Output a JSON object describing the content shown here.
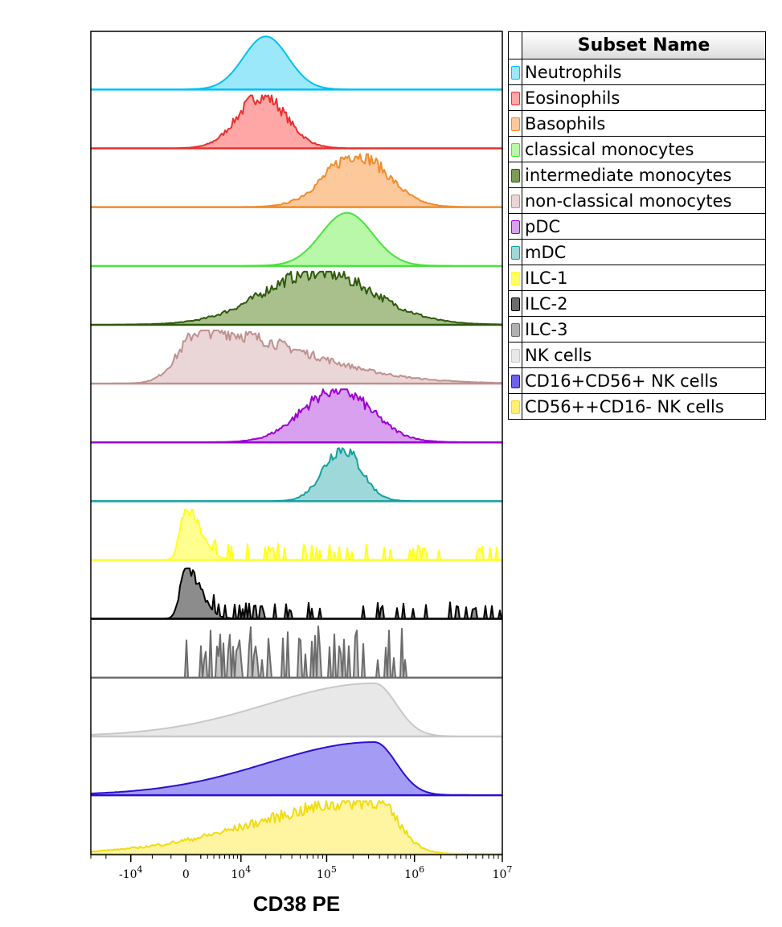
{
  "chart_data": {
    "type": "area",
    "title": "",
    "xlabel": "CD38 PE",
    "ylabel": "",
    "x_scale": "biexponential",
    "xlim": [
      -30000,
      10000000
    ],
    "x_ticks": [
      {
        "value": -10000,
        "base": "-10",
        "exp": "4"
      },
      {
        "value": 0,
        "base": "0",
        "exp": ""
      },
      {
        "value": 10000,
        "base": "10",
        "exp": "4"
      },
      {
        "value": 100000,
        "base": "10",
        "exp": "5"
      },
      {
        "value": 1000000,
        "base": "10",
        "exp": "6"
      },
      {
        "value": 10000000,
        "base": "10",
        "exp": "7"
      }
    ],
    "legend_header": "Subset Name",
    "legend_placement": "right",
    "series": [
      {
        "name": "Neutrophils",
        "color": "#00c0f0",
        "fill": "#9be8fb",
        "peak": 20000,
        "width": 0.65,
        "style": "smooth"
      },
      {
        "name": "Eosinophils",
        "color": "#e83030",
        "fill": "#ffa6a6",
        "peak": 18000,
        "width": 0.7,
        "style": "jagged"
      },
      {
        "name": "Basophils",
        "color": "#f08c2a",
        "fill": "#fdc89a",
        "peak": 220000,
        "width": 0.9,
        "style": "jagged"
      },
      {
        "name": "classical monocytes",
        "color": "#4ce040",
        "fill": "#b8f8a8",
        "peak": 170000,
        "width": 0.75,
        "style": "smooth"
      },
      {
        "name": "intermediate monocytes",
        "color": "#2f5a0c",
        "fill": "#a9c08c",
        "peak": 80000,
        "width": 1.6,
        "style": "jagged"
      },
      {
        "name": "non-classical monocytes",
        "color": "#c09090",
        "fill": "#ead6d6",
        "peak": 2000,
        "width": 1.6,
        "style": "skew"
      },
      {
        "name": "pDC",
        "color": "#9a00d0",
        "fill": "#d9a0f0",
        "peak": 130000,
        "width": 1.0,
        "style": "jagged"
      },
      {
        "name": "mDC",
        "color": "#15a0a0",
        "fill": "#9ed8d8",
        "peak": 150000,
        "width": 0.55,
        "style": "jagged"
      },
      {
        "name": "ILC-1",
        "color": "#ffff20",
        "fill": "#ffff90",
        "peak": 0,
        "width": 0.5,
        "style": "sparse"
      },
      {
        "name": "ILC-2",
        "color": "#000000",
        "fill": "#8c8c8c",
        "peak": 0,
        "width": 0.5,
        "style": "sparse"
      },
      {
        "name": "ILC-3",
        "color": "#6c6c6c",
        "fill": "#c4c4c4",
        "peak": 40000,
        "width": 3.0,
        "style": "spiky"
      },
      {
        "name": "NK cells",
        "color": "#c8c8c8",
        "fill": "#e8e8e8",
        "peak": 350000,
        "width": 1.4,
        "style": "leftskew"
      },
      {
        "name": "CD16+CD56+ NK cells",
        "color": "#2a10d0",
        "fill": "#a49cf4",
        "peak": 350000,
        "width": 1.4,
        "style": "leftskew"
      },
      {
        "name": "CD56++CD16- NK cells",
        "color": "#f0dc10",
        "fill": "#fff4a0",
        "peak": 350000,
        "width": 1.5,
        "style": "leftskewjag"
      }
    ],
    "swatch_fill_overrides": {
      "intermediate monocytes": "#7c9a5a",
      "ILC-1": "#ffff60",
      "ILC-2": "#6c6c6c",
      "ILC-3": "#b0b0b0",
      "CD16+CD56+ NK cells": "#7060f0",
      "CD56++CD16- NK cells": "#fff070"
    }
  }
}
